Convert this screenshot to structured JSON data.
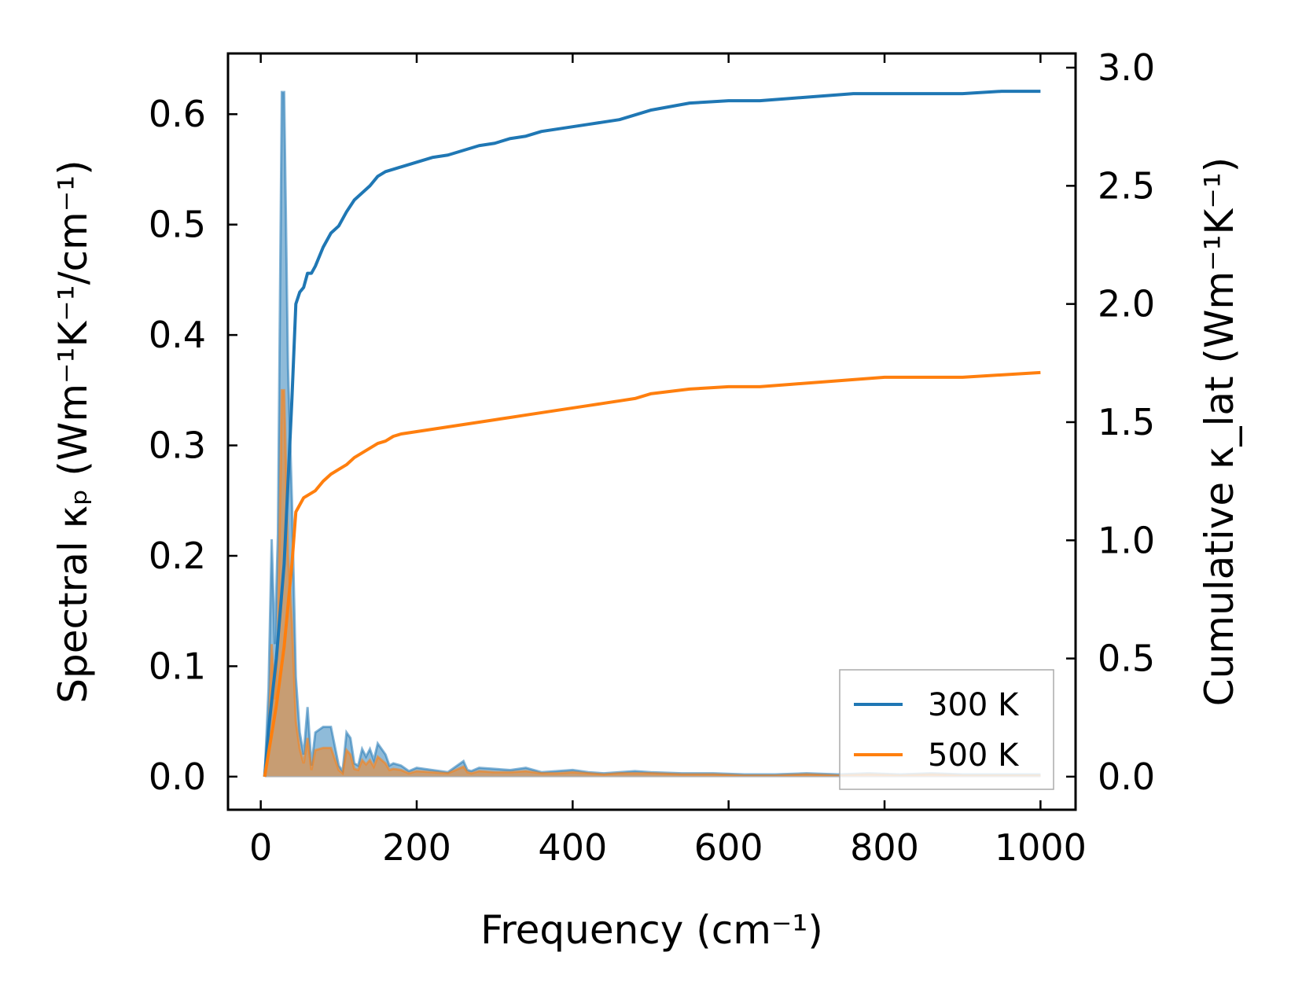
{
  "chart_data": {
    "type": "line",
    "xlabel": "Frequency (cm⁻¹)",
    "ylabel_left": "Spectral κₚ (Wm⁻¹K⁻¹/cm⁻¹)",
    "ylabel_right": "Cumulative κ_lat (Wm⁻¹K⁻¹)",
    "xlim": [
      -42,
      1045
    ],
    "ylim_left": [
      -0.03,
      0.655
    ],
    "ylim_right": [
      -0.14,
      3.06
    ],
    "x_ticks": [
      "0",
      "200",
      "400",
      "600",
      "800",
      "1000"
    ],
    "y_left_ticks": [
      "0.0",
      "0.1",
      "0.2",
      "0.3",
      "0.4",
      "0.5",
      "0.6"
    ],
    "y_right_ticks": [
      "0.0",
      "0.5",
      "1.0",
      "1.5",
      "2.0",
      "2.5",
      "3.0"
    ],
    "grid": false,
    "legend_position": "lower-right",
    "colors": {
      "300K": "#1f77b4",
      "500K": "#ff7f0e"
    },
    "legend": [
      "300 K",
      "500 K"
    ],
    "spectral": {
      "axis": "left",
      "style": "filled-area",
      "series": [
        {
          "name": "300 K",
          "x": [
            5,
            10,
            14,
            18,
            22,
            27,
            30,
            35,
            40,
            45,
            50,
            55,
            60,
            65,
            70,
            80,
            90,
            100,
            105,
            110,
            115,
            120,
            125,
            130,
            135,
            140,
            145,
            150,
            155,
            160,
            165,
            170,
            180,
            190,
            200,
            220,
            240,
            260,
            265,
            270,
            280,
            300,
            320,
            340,
            360,
            380,
            400,
            420,
            440,
            460,
            480,
            500,
            540,
            580,
            620,
            660,
            700,
            740,
            780,
            820,
            860,
            900,
            940,
            980,
            1000
          ],
          "y": [
            0.0,
            0.08,
            0.215,
            0.12,
            0.22,
            0.62,
            0.62,
            0.37,
            0.25,
            0.09,
            0.04,
            0.02,
            0.063,
            0.01,
            0.04,
            0.045,
            0.045,
            0.01,
            0.005,
            0.04,
            0.035,
            0.012,
            0.01,
            0.025,
            0.018,
            0.025,
            0.015,
            0.03,
            0.025,
            0.02,
            0.01,
            0.012,
            0.01,
            0.005,
            0.008,
            0.006,
            0.004,
            0.014,
            0.006,
            0.005,
            0.008,
            0.007,
            0.006,
            0.008,
            0.004,
            0.005,
            0.006,
            0.004,
            0.003,
            0.004,
            0.005,
            0.004,
            0.003,
            0.003,
            0.002,
            0.002,
            0.003,
            0.002,
            0.003,
            0.002,
            0.003,
            0.002,
            0.002,
            0.002,
            0.002
          ]
        },
        {
          "name": "500 K",
          "x": [
            5,
            10,
            14,
            18,
            22,
            27,
            30,
            35,
            40,
            45,
            50,
            55,
            60,
            65,
            70,
            80,
            90,
            100,
            105,
            110,
            115,
            120,
            125,
            130,
            135,
            140,
            145,
            150,
            155,
            160,
            165,
            170,
            180,
            190,
            200,
            220,
            240,
            260,
            265,
            270,
            280,
            300,
            320,
            340,
            360,
            380,
            400,
            420,
            440,
            460,
            480,
            500,
            540,
            580,
            620,
            660,
            700,
            740,
            780,
            820,
            860,
            900,
            940,
            980,
            1000
          ],
          "y": [
            0.0,
            0.03,
            0.12,
            0.07,
            0.13,
            0.35,
            0.35,
            0.2,
            0.14,
            0.05,
            0.025,
            0.012,
            0.035,
            0.006,
            0.024,
            0.026,
            0.026,
            0.006,
            0.003,
            0.024,
            0.02,
            0.007,
            0.006,
            0.015,
            0.011,
            0.015,
            0.009,
            0.018,
            0.015,
            0.012,
            0.006,
            0.007,
            0.006,
            0.003,
            0.005,
            0.004,
            0.003,
            0.009,
            0.004,
            0.003,
            0.005,
            0.004,
            0.004,
            0.005,
            0.003,
            0.003,
            0.004,
            0.003,
            0.002,
            0.003,
            0.003,
            0.003,
            0.002,
            0.002,
            0.001,
            0.001,
            0.002,
            0.001,
            0.002,
            0.001,
            0.002,
            0.001,
            0.001,
            0.001,
            0.001
          ]
        }
      ]
    },
    "cumulative": {
      "axis": "right",
      "style": "line",
      "series": [
        {
          "name": "300 K",
          "x": [
            5,
            10,
            20,
            30,
            40,
            45,
            50,
            55,
            60,
            65,
            70,
            80,
            90,
            100,
            110,
            120,
            130,
            140,
            150,
            160,
            170,
            180,
            200,
            220,
            240,
            260,
            280,
            300,
            320,
            340,
            360,
            380,
            400,
            420,
            440,
            460,
            480,
            500,
            550,
            600,
            640,
            680,
            720,
            760,
            800,
            850,
            900,
            950,
            1000
          ],
          "y": [
            0.0,
            0.2,
            0.5,
            0.9,
            1.6,
            2.0,
            2.05,
            2.07,
            2.13,
            2.13,
            2.16,
            2.24,
            2.3,
            2.33,
            2.39,
            2.44,
            2.47,
            2.5,
            2.54,
            2.56,
            2.57,
            2.58,
            2.6,
            2.62,
            2.63,
            2.65,
            2.67,
            2.68,
            2.7,
            2.71,
            2.73,
            2.74,
            2.75,
            2.76,
            2.77,
            2.78,
            2.8,
            2.82,
            2.85,
            2.86,
            2.86,
            2.87,
            2.88,
            2.89,
            2.89,
            2.89,
            2.89,
            2.9,
            2.9
          ]
        },
        {
          "name": "500 K",
          "x": [
            5,
            10,
            20,
            30,
            40,
            45,
            50,
            55,
            60,
            65,
            70,
            80,
            90,
            100,
            110,
            120,
            130,
            140,
            150,
            160,
            170,
            180,
            200,
            220,
            240,
            260,
            280,
            300,
            320,
            340,
            360,
            380,
            400,
            420,
            440,
            460,
            480,
            500,
            550,
            600,
            640,
            680,
            720,
            760,
            800,
            850,
            900,
            950,
            1000
          ],
          "y": [
            0.0,
            0.1,
            0.3,
            0.55,
            0.9,
            1.12,
            1.15,
            1.18,
            1.19,
            1.2,
            1.21,
            1.25,
            1.28,
            1.3,
            1.32,
            1.35,
            1.37,
            1.39,
            1.41,
            1.42,
            1.44,
            1.45,
            1.46,
            1.47,
            1.48,
            1.49,
            1.5,
            1.51,
            1.52,
            1.53,
            1.54,
            1.55,
            1.56,
            1.57,
            1.58,
            1.59,
            1.6,
            1.62,
            1.64,
            1.65,
            1.65,
            1.66,
            1.67,
            1.68,
            1.69,
            1.69,
            1.69,
            1.7,
            1.71
          ]
        }
      ]
    }
  }
}
